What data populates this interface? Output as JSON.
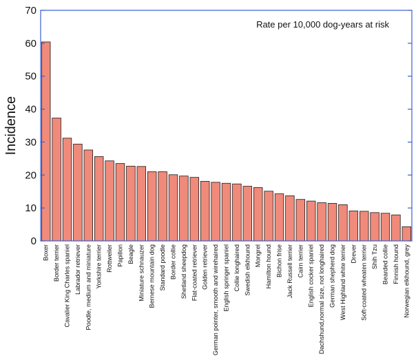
{
  "chart_data": {
    "type": "bar",
    "ylabel": "Incidence",
    "xlabel": "",
    "ylim": [
      0,
      70
    ],
    "yticks": [
      0,
      10,
      20,
      30,
      40,
      50,
      60,
      70
    ],
    "annotation": "Rate per 10,000 dog-years at risk",
    "grid": false,
    "colors": {
      "bar_fill": "#f08a7a",
      "bar_stroke": "#1a1a1a",
      "axis": "#3a5fcd"
    },
    "categories": [
      "Boxer",
      "Border terrier",
      "Cavalier King Charles spaniel",
      "Labrador retriever",
      "Poodle, medium and miniature",
      "Yorkshire terrier",
      "Rottweiler",
      "Papillon",
      "Beagle",
      "Miniature schnauzer",
      "Bernese mountain dog",
      "Standard poodle",
      "Border collie",
      "Shetland sheepdog",
      "Flat-coated retriever",
      "Golden retriever",
      "German pointer, smooth and wirehaired",
      "English springer spaniel",
      "Collie longhaired",
      "Swedish elkhound",
      "Mongrel",
      "Hamilton hound",
      "Bichon frise",
      "Jack Russell terrier",
      "Cairn terrier",
      "English cocker spaniel",
      "Dachshund,normal size, not longhaired",
      "German shepherd dog",
      "West Highland white terrier",
      "Drever",
      "Soft-coated wheaten terrier",
      "Shih Tzu",
      "Bearded collie",
      "Finnish hound",
      "Norwegian elkhound, grey"
    ],
    "values": [
      60.4,
      37.3,
      31.2,
      29.4,
      27.6,
      25.6,
      24.3,
      23.5,
      22.7,
      22.6,
      21.0,
      21.0,
      20.1,
      19.7,
      19.3,
      18.1,
      17.8,
      17.5,
      17.3,
      16.6,
      16.2,
      15.1,
      14.3,
      13.7,
      12.6,
      12.1,
      11.6,
      11.4,
      11.0,
      9.1,
      9.0,
      8.6,
      8.4,
      7.9,
      4.3
    ]
  }
}
